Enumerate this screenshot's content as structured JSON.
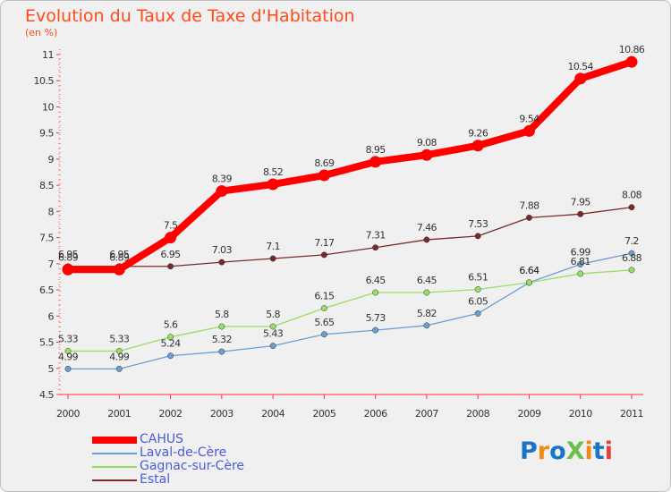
{
  "title": "Evolution du Taux de Taxe d'Habitation",
  "subtitle": "(en %)",
  "logo": {
    "text": "ProXiti",
    "colors": [
      "#1a75c9",
      "#f08a17",
      "#1a75c9",
      "#6cc04a",
      "#f08a17",
      "#1a75c9",
      "#e8413c"
    ]
  },
  "chart_data": {
    "type": "line",
    "title": "Evolution du Taux de Taxe d'Habitation",
    "ylabel": "(en %)",
    "xlabel": "",
    "ylim": [
      4.5,
      11
    ],
    "yticks": [
      "4.5",
      "5",
      "5.5",
      "6",
      "6.5",
      "7",
      "7.5",
      "8",
      "8.5",
      "9",
      "9.5",
      "10",
      "10.5",
      "11"
    ],
    "categories": [
      "2000",
      "2001",
      "2002",
      "2003",
      "2004",
      "2005",
      "2006",
      "2007",
      "2008",
      "2009",
      "2010",
      "2011"
    ],
    "legend_position": "bottom-left",
    "grid": false,
    "series": [
      {
        "name": "CAHUS",
        "color": "#ff0000",
        "values": [
          6.89,
          6.89,
          7.5,
          8.39,
          8.52,
          8.69,
          8.95,
          9.08,
          9.26,
          9.54,
          10.54,
          10.86
        ],
        "labels": [
          "6.89",
          "6.89",
          "7.5",
          "8.39",
          "8.52",
          "8.69",
          "8.95",
          "9.08",
          "9.26",
          "9.54",
          "10.54",
          "10.86"
        ]
      },
      {
        "name": "Laval-de-Cère",
        "color": "#6a9fd4",
        "values": [
          4.99,
          4.99,
          5.24,
          5.32,
          5.43,
          5.65,
          5.73,
          5.82,
          6.05,
          6.64,
          6.99,
          7.2
        ],
        "labels": [
          "4.99",
          "4.99",
          "5.24",
          "5.32",
          "5.43",
          "5.65",
          "5.73",
          "5.82",
          "6.05",
          "6.64",
          "6.99",
          "7.2"
        ]
      },
      {
        "name": "Gagnac-sur-Cère",
        "color": "#99dd66",
        "values": [
          5.33,
          5.33,
          5.6,
          5.8,
          5.8,
          6.15,
          6.45,
          6.45,
          6.51,
          6.64,
          6.81,
          6.88
        ],
        "labels": [
          "5.33",
          "5.33",
          "5.6",
          "5.8",
          "5.8",
          "6.15",
          "6.45",
          "6.45",
          "6.51",
          "6.64",
          "6.81",
          "6.88"
        ]
      },
      {
        "name": "Estal",
        "color": "#7a2a2a",
        "values": [
          6.95,
          6.95,
          6.95,
          7.03,
          7.1,
          7.17,
          7.31,
          7.46,
          7.53,
          7.88,
          7.95,
          8.08
        ],
        "labels": [
          "6.95",
          "6.95",
          "6.95",
          "7.03",
          "7.1",
          "7.17",
          "7.31",
          "7.46",
          "7.53",
          "7.88",
          "7.95",
          "8.08"
        ]
      }
    ]
  }
}
